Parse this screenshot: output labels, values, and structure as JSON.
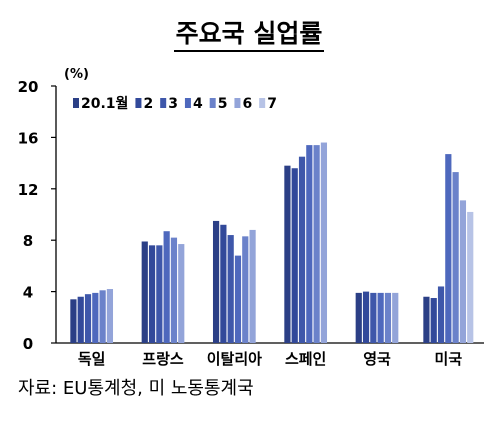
{
  "chart_data": {
    "type": "bar",
    "title": "주요국 실업률",
    "ylabel": "(%)",
    "ylim": [
      0,
      20
    ],
    "yticks": [
      "0",
      "4",
      "8",
      "12",
      "16",
      "20"
    ],
    "categories": [
      "독일",
      "프랑스",
      "이탈리아",
      "스페인",
      "영국",
      "미국"
    ],
    "series": [
      {
        "name": "20.1월",
        "color": "#2b3f86",
        "values": [
          3.4,
          7.9,
          9.5,
          13.8,
          3.9,
          3.6
        ]
      },
      {
        "name": "2",
        "color": "#32499a",
        "values": [
          3.6,
          7.6,
          9.2,
          13.6,
          4.0,
          3.5
        ]
      },
      {
        "name": "3",
        "color": "#3e57aa",
        "values": [
          3.8,
          7.6,
          8.4,
          14.5,
          3.9,
          4.4
        ]
      },
      {
        "name": "4",
        "color": "#4e68bd",
        "values": [
          3.9,
          8.7,
          6.8,
          15.4,
          3.9,
          14.7
        ]
      },
      {
        "name": "5",
        "color": "#6b82ca",
        "values": [
          4.1,
          8.2,
          8.3,
          15.4,
          3.9,
          13.3
        ]
      },
      {
        "name": "6",
        "color": "#93a4d9",
        "values": [
          4.2,
          7.7,
          8.8,
          15.6,
          3.9,
          11.1
        ]
      },
      {
        "name": "7",
        "color": "#b7c3e6",
        "values": [
          null,
          null,
          null,
          null,
          null,
          10.2
        ]
      }
    ],
    "grid": false,
    "legend": "top-left"
  },
  "source": "자료: EU통계청, 미 노동통계국"
}
